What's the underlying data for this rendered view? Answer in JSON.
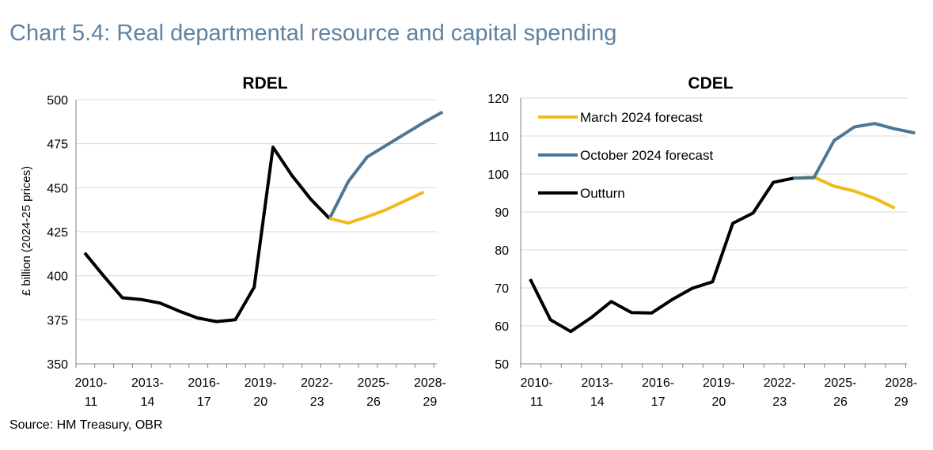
{
  "header": {
    "title": "Chart 5.4: Real departmental resource and capital spending"
  },
  "footer": {
    "source": "Source: HM Treasury, OBR"
  },
  "colors": {
    "outturn": "#000000",
    "march": "#f2b91a",
    "october": "#4e7795",
    "grid": "#d9d9d9",
    "title": "#5f82a0"
  },
  "legend": [
    {
      "key": "march",
      "label": "March 2024 forecast"
    },
    {
      "key": "october",
      "label": "October 2024 forecast"
    },
    {
      "key": "outturn",
      "label": "Outturn"
    }
  ],
  "chart_data": [
    {
      "id": "rdel",
      "type": "line",
      "title": "RDEL",
      "ylabel": "£ billion (2024-25 prices)",
      "xlabel": "",
      "ylim": [
        350,
        500
      ],
      "yticks": [
        350,
        375,
        400,
        425,
        450,
        475,
        500
      ],
      "xlabels": [
        {
          "index": 0,
          "line1": "2010-",
          "line2": "11"
        },
        {
          "index": 3,
          "line1": "2013-",
          "line2": "14"
        },
        {
          "index": 6,
          "line1": "2016-",
          "line2": "17"
        },
        {
          "index": 9,
          "line1": "2019-",
          "line2": "20"
        },
        {
          "index": 12,
          "line1": "2022-",
          "line2": "23"
        },
        {
          "index": 15,
          "line1": "2025-",
          "line2": "26"
        },
        {
          "index": 18,
          "line1": "2028-",
          "line2": "29"
        }
      ],
      "n_periods": 19,
      "series": [
        {
          "key": "outturn",
          "name": "Outturn",
          "x": [
            0,
            1,
            2,
            3,
            4,
            5,
            6,
            7,
            8,
            9,
            10,
            11,
            12,
            13
          ],
          "values": [
            413,
            400,
            387.5,
            386.5,
            384.5,
            380,
            376,
            374,
            375,
            393.5,
            473,
            457,
            443.5,
            432.5
          ]
        },
        {
          "key": "october",
          "name": "October 2024 forecast",
          "x": [
            13,
            14,
            15,
            16,
            17,
            18,
            19
          ],
          "values": [
            432.5,
            453.5,
            467.5,
            474,
            480.5,
            487,
            493
          ]
        },
        {
          "key": "march",
          "name": "March 2024 forecast",
          "x": [
            13,
            14,
            15,
            16,
            17,
            18
          ],
          "values": [
            432.5,
            430,
            433.5,
            437.5,
            442.5,
            447.5
          ]
        }
      ]
    },
    {
      "id": "cdel",
      "type": "line",
      "title": "CDEL",
      "ylabel": "",
      "xlabel": "",
      "ylim": [
        50,
        120
      ],
      "yticks": [
        50,
        60,
        70,
        80,
        90,
        100,
        110,
        120
      ],
      "xlabels": [
        {
          "index": 0,
          "line1": "2010-",
          "line2": "11"
        },
        {
          "index": 3,
          "line1": "2013-",
          "line2": "14"
        },
        {
          "index": 6,
          "line1": "2016-",
          "line2": "17"
        },
        {
          "index": 9,
          "line1": "2019-",
          "line2": "20"
        },
        {
          "index": 12,
          "line1": "2022-",
          "line2": "23"
        },
        {
          "index": 15,
          "line1": "2025-",
          "line2": "26"
        },
        {
          "index": 18,
          "line1": "2028-",
          "line2": "29"
        }
      ],
      "n_periods": 19,
      "legend_position": "top-left",
      "series": [
        {
          "key": "outturn",
          "name": "Outturn",
          "x": [
            0,
            1,
            2,
            3,
            4,
            5,
            6,
            7,
            8,
            9,
            10,
            11,
            12,
            13
          ],
          "values": [
            72.3,
            61.6,
            58.5,
            62.1,
            66.4,
            63.5,
            63.4,
            66.9,
            69.9,
            71.6,
            87.0,
            89.7,
            97.8,
            98.9
          ]
        },
        {
          "key": "march",
          "name": "March 2024 forecast",
          "x": [
            13,
            14,
            15,
            16,
            17,
            18
          ],
          "values": [
            98.9,
            99.2,
            96.8,
            95.5,
            93.6,
            91.0
          ]
        },
        {
          "key": "october",
          "name": "October 2024 forecast",
          "x": [
            13,
            14,
            15,
            16,
            17,
            18,
            19
          ],
          "values": [
            98.9,
            99.0,
            108.8,
            112.4,
            113.3,
            111.9,
            110.8
          ]
        }
      ]
    }
  ]
}
